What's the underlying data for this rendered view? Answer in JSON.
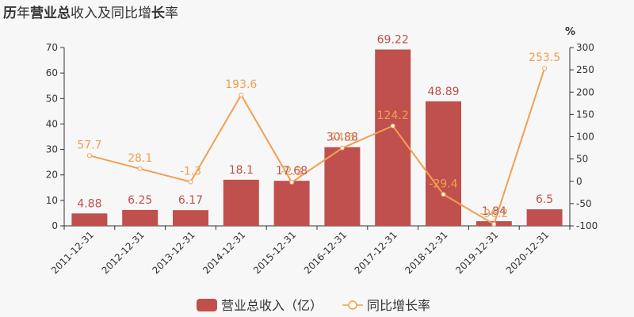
{
  "title": {
    "part1_bold": "历",
    "part2": "年",
    "part3_bold": "营业总",
    "part4": "收入及同比增",
    "part5_bold": "长",
    "part6": "率"
  },
  "colors": {
    "bar": "#c0504d",
    "line": "#f0a050",
    "background": "#f7f7f7"
  },
  "chart_data": {
    "type": "bar+line",
    "categories": [
      "2011-12-31",
      "2012-12-31",
      "2013-12-31",
      "2014-12-31",
      "2015-12-31",
      "2016-12-31",
      "2017-12-31",
      "2018-12-31",
      "2019-12-31",
      "2020-12-31"
    ],
    "series": [
      {
        "name": "营业总收入（亿）",
        "type": "bar",
        "axis": "left",
        "values": [
          4.88,
          6.25,
          6.17,
          18.1,
          17.68,
          30.88,
          69.22,
          48.89,
          1.84,
          6.5
        ],
        "labels": [
          "4.88",
          "6.25",
          "6.17",
          "18.1",
          "17.68",
          "30.88",
          "69.22",
          "48.89",
          "1.84",
          "6.5"
        ]
      },
      {
        "name": "同比增长率",
        "type": "line",
        "axis": "right",
        "values": [
          57.7,
          28.1,
          -1.3,
          193.6,
          -2.3,
          74.6,
          124.2,
          -29.4,
          -96.2,
          253.5
        ],
        "labels": [
          "57.7",
          "28.1",
          "-1.3",
          "193.6",
          "-2.3",
          "74.6",
          "124.2",
          "-29.4",
          "-96.2",
          "253.5"
        ]
      }
    ],
    "left_axis": {
      "min": 0,
      "max": 70,
      "ticks": [
        0,
        10,
        20,
        30,
        40,
        50,
        60,
        70
      ]
    },
    "right_axis": {
      "min": -100,
      "max": 300,
      "ticks": [
        -100,
        -50,
        0,
        50,
        100,
        150,
        200,
        250,
        300
      ],
      "unit": "%"
    },
    "legend_position": "bottom"
  }
}
